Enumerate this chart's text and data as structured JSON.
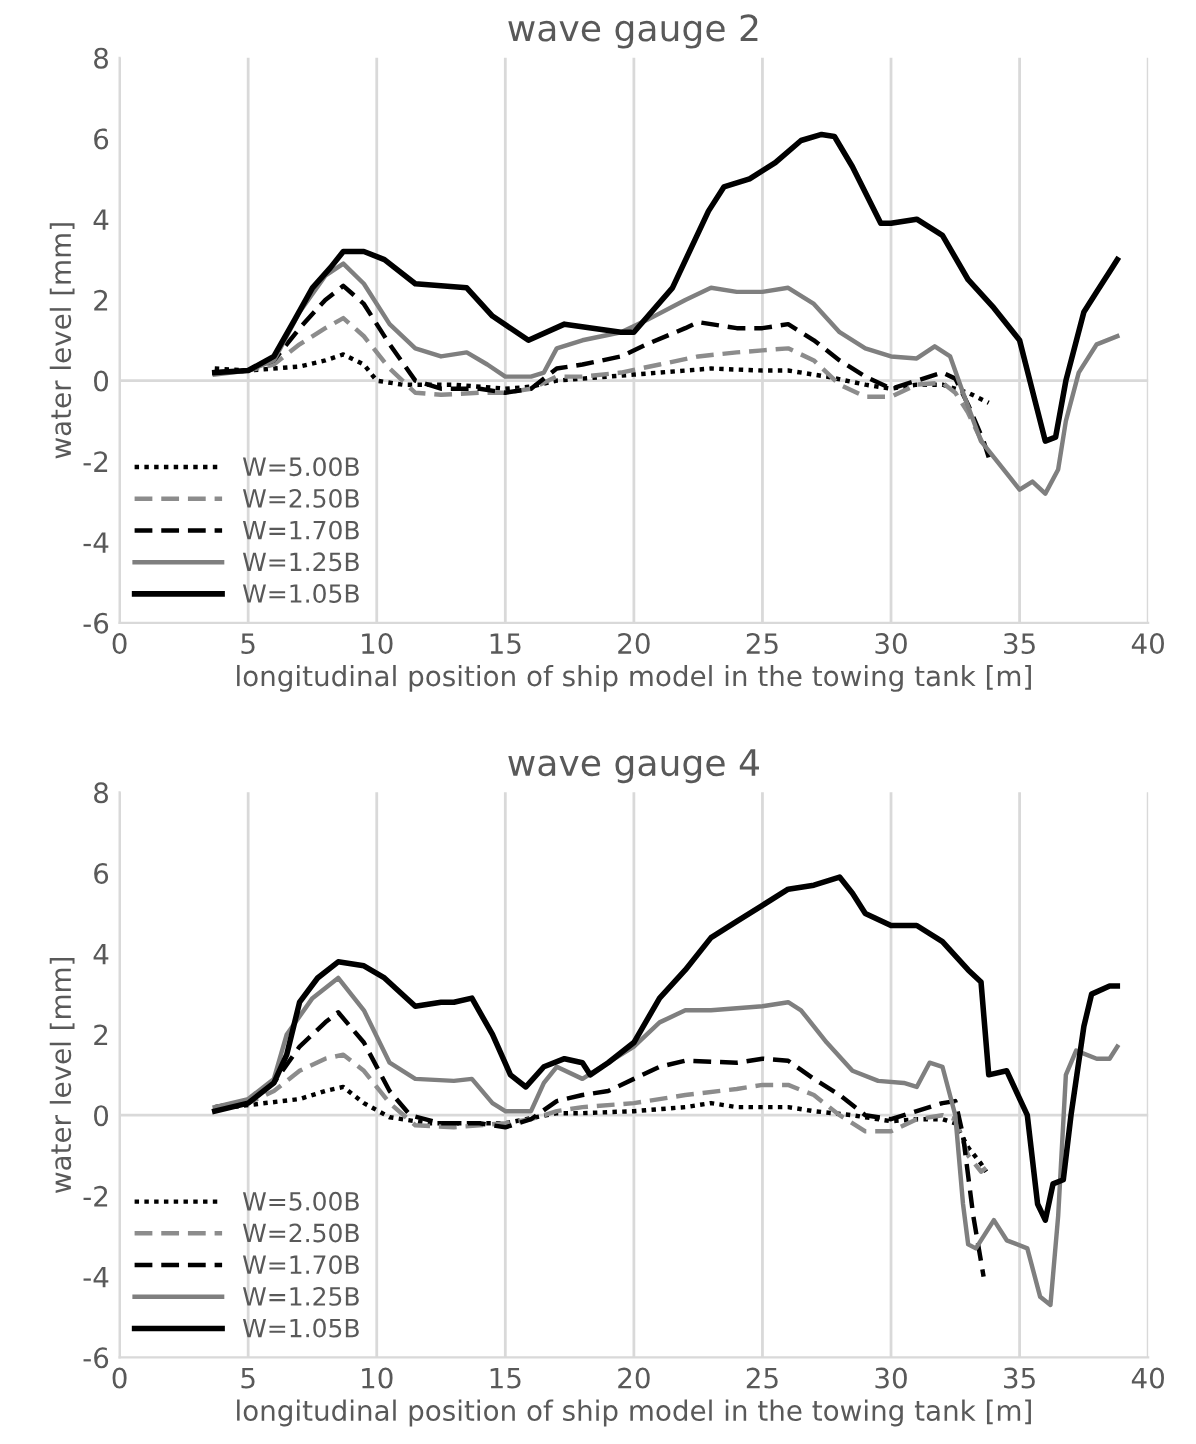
{
  "chart_data": [
    {
      "type": "line",
      "title": "wave gauge 2",
      "xlabel": "longitudinal position of ship model in the towing tank [m]",
      "ylabel": "water level [mm]",
      "xlim": [
        0,
        40
      ],
      "xticks": [
        0,
        5,
        10,
        15,
        20,
        25,
        30,
        35,
        40
      ],
      "ylim": [
        -6,
        8
      ],
      "yticks": [
        -6,
        -4,
        -2,
        0,
        2,
        4,
        6,
        8
      ],
      "grid": "x",
      "legend": "bottom left",
      "marker": "none",
      "ref_lines": [
        {
          "axis": "y",
          "value": 0,
          "color": "#d9d9d9"
        }
      ],
      "series": [
        {
          "name": "W=5.00B",
          "color": "#000000",
          "line_style": "dotted",
          "x": [
            3.7,
            5,
            7,
            8,
            8.7,
            9.5,
            10,
            11,
            13,
            15,
            16,
            17,
            18,
            20,
            22,
            23,
            25,
            26,
            27.5,
            29,
            30,
            31,
            32,
            33,
            33.8
          ],
          "values": [
            0.3,
            0.25,
            0.35,
            0.5,
            0.65,
            0.4,
            0,
            -0.1,
            -0.1,
            -0.2,
            -0.15,
            0,
            0.05,
            0.15,
            0.25,
            0.3,
            0.25,
            0.25,
            0.1,
            -0.1,
            -0.2,
            -0.1,
            -0.1,
            -0.3,
            -0.55
          ]
        },
        {
          "name": "W=2.50B",
          "color": "#8c8c8c",
          "line_style": "dashed",
          "x": [
            3.7,
            5,
            6,
            7,
            8,
            8.7,
            9.5,
            10.5,
            11.5,
            12.5,
            14,
            15,
            16,
            17,
            18,
            19.5,
            21,
            22.5,
            24,
            25,
            26,
            27,
            28,
            29,
            30,
            31,
            32,
            32.5,
            33,
            33.6
          ],
          "values": [
            0.2,
            0.25,
            0.4,
            0.9,
            1.3,
            1.55,
            1.1,
            0.3,
            -0.3,
            -0.35,
            -0.3,
            -0.3,
            -0.2,
            0.1,
            0.1,
            0.2,
            0.4,
            0.6,
            0.7,
            0.75,
            0.8,
            0.5,
            -0.1,
            -0.4,
            -0.4,
            -0.1,
            -0.05,
            -0.3,
            -0.8,
            -1.6
          ]
        },
        {
          "name": "W=1.70B",
          "color": "#000000",
          "line_style": "dashed",
          "x": [
            3.7,
            5,
            6,
            7,
            8,
            8.7,
            9.5,
            10.5,
            11.5,
            12.5,
            14,
            15,
            16,
            17,
            18,
            19.5,
            20.5,
            22,
            22.5,
            24,
            25,
            26,
            27,
            28,
            29,
            30,
            31,
            32,
            32.5,
            33,
            33.6,
            33.8
          ],
          "values": [
            0.2,
            0.25,
            0.5,
            1.3,
            2.0,
            2.35,
            1.9,
            0.9,
            0,
            -0.2,
            -0.2,
            -0.3,
            -0.2,
            0.3,
            0.4,
            0.6,
            0.9,
            1.3,
            1.45,
            1.3,
            1.3,
            1.4,
            1.0,
            0.5,
            0.1,
            -0.2,
            0,
            0.2,
            0.05,
            -0.6,
            -1.5,
            -1.9
          ]
        },
        {
          "name": "W=1.25B",
          "color": "#7f7f7f",
          "line_style": "solid",
          "x": [
            3.7,
            5,
            6,
            7,
            8,
            8.7,
            9.5,
            10.5,
            11.5,
            12.5,
            13.5,
            14.3,
            15,
            16,
            16.5,
            17,
            18,
            19.5,
            20.5,
            22,
            23,
            24,
            25,
            26,
            27,
            28,
            29,
            30,
            31,
            31.7,
            32.3,
            32.8,
            33.5,
            34.5,
            35,
            35.5,
            36,
            36.5,
            36.8,
            37.3,
            38,
            38.8
          ],
          "values": [
            0.15,
            0.25,
            0.5,
            1.7,
            2.6,
            2.9,
            2.4,
            1.4,
            0.8,
            0.6,
            0.7,
            0.4,
            0.1,
            0.1,
            0.2,
            0.8,
            1.0,
            1.2,
            1.5,
            2.0,
            2.3,
            2.2,
            2.2,
            2.3,
            1.9,
            1.2,
            0.8,
            0.6,
            0.55,
            0.85,
            0.6,
            -0.3,
            -1.5,
            -2.3,
            -2.7,
            -2.5,
            -2.8,
            -2.2,
            -1.0,
            0.2,
            0.9,
            1.1
          ]
        },
        {
          "name": "W=1.05B",
          "color": "#000000",
          "line_style": "solid",
          "x": [
            3.7,
            5,
            6,
            6.8,
            7.5,
            8.2,
            8.7,
            9.5,
            10.3,
            11.5,
            12.5,
            13.5,
            14.5,
            15.9,
            17.3,
            19.5,
            20,
            21.5,
            22.9,
            23.5,
            24.5,
            25.5,
            26.5,
            27.3,
            27.8,
            28.5,
            29.6,
            30,
            31,
            32,
            33,
            34,
            35,
            35.6,
            36,
            36.4,
            36.8,
            37.5,
            38,
            38.6,
            38.8
          ],
          "values": [
            0.2,
            0.25,
            0.6,
            1.5,
            2.3,
            2.8,
            3.2,
            3.2,
            3.0,
            2.4,
            2.35,
            2.3,
            1.6,
            1.0,
            1.4,
            1.2,
            1.2,
            2.3,
            4.2,
            4.8,
            5.0,
            5.4,
            5.95,
            6.1,
            6.05,
            5.3,
            3.9,
            3.9,
            4.0,
            3.6,
            2.5,
            1.8,
            1.0,
            -0.5,
            -1.5,
            -1.4,
            0,
            1.7,
            2.2,
            2.8,
            3.0
          ]
        }
      ]
    },
    {
      "type": "line",
      "title": "wave gauge 4",
      "xlabel": "longitudinal position of ship model in the towing tank [m]",
      "ylabel": "water level [mm]",
      "xlim": [
        0,
        40
      ],
      "xticks": [
        0,
        5,
        10,
        15,
        20,
        25,
        30,
        35,
        40
      ],
      "ylim": [
        -6,
        8
      ],
      "yticks": [
        -6,
        -4,
        -2,
        0,
        2,
        4,
        6,
        8
      ],
      "grid": "x",
      "legend": "bottom left",
      "marker": "none",
      "ref_lines": [
        {
          "axis": "y",
          "value": 0,
          "color": "#d9d9d9"
        }
      ],
      "series": [
        {
          "name": "W=5.00B",
          "color": "#000000",
          "line_style": "dotted",
          "x": [
            3.7,
            5,
            7,
            8,
            8.7,
            9.5,
            10.5,
            12,
            14,
            15,
            17,
            18,
            20,
            22,
            23,
            24,
            25,
            26,
            27,
            28.5,
            30,
            31,
            32,
            32.5,
            33,
            33.5,
            33.7
          ],
          "values": [
            0.15,
            0.25,
            0.4,
            0.6,
            0.7,
            0.3,
            -0.05,
            -0.2,
            -0.2,
            -0.2,
            0.05,
            0.05,
            0.1,
            0.2,
            0.3,
            0.2,
            0.2,
            0.2,
            0.1,
            0,
            -0.15,
            -0.1,
            -0.1,
            -0.2,
            -0.8,
            -1.2,
            -1.4
          ]
        },
        {
          "name": "W=2.50B",
          "color": "#8c8c8c",
          "line_style": "dashed",
          "x": [
            3.7,
            5,
            6,
            7,
            8,
            8.7,
            9.5,
            10.5,
            11.5,
            13,
            15,
            16,
            17,
            18,
            20,
            22,
            24,
            25,
            26,
            27,
            28,
            29,
            30,
            31,
            32,
            32.5,
            33,
            33.5,
            33.7
          ],
          "values": [
            0.2,
            0.3,
            0.6,
            1.1,
            1.4,
            1.5,
            1.1,
            0.3,
            -0.25,
            -0.3,
            -0.2,
            -0.1,
            0.1,
            0.2,
            0.3,
            0.5,
            0.65,
            0.75,
            0.75,
            0.5,
            0,
            -0.4,
            -0.4,
            -0.1,
            0,
            -0.1,
            -1.0,
            -1.4,
            -1.3
          ]
        },
        {
          "name": "W=1.70B",
          "color": "#000000",
          "line_style": "dashed",
          "x": [
            3.7,
            5,
            6,
            7,
            8,
            8.5,
            9.5,
            10.5,
            11.3,
            12.5,
            14,
            15,
            16,
            17,
            18,
            19,
            20,
            21,
            22,
            24,
            25,
            26,
            27,
            28,
            29,
            30,
            31,
            32,
            32.5,
            32.8,
            33.2,
            33.6
          ],
          "values": [
            0.2,
            0.35,
            0.8,
            1.7,
            2.3,
            2.55,
            1.8,
            0.6,
            0,
            -0.2,
            -0.2,
            -0.3,
            -0.1,
            0.35,
            0.5,
            0.6,
            0.9,
            1.2,
            1.35,
            1.3,
            1.4,
            1.35,
            0.9,
            0.5,
            0,
            -0.1,
            0.1,
            0.3,
            0.35,
            -0.5,
            -2.5,
            -4.0
          ]
        },
        {
          "name": "W=1.25B",
          "color": "#7f7f7f",
          "line_style": "solid",
          "x": [
            3.7,
            5,
            6,
            6.5,
            7.5,
            8.5,
            9.5,
            10.5,
            11.5,
            13,
            13.7,
            14.5,
            15,
            16,
            16.5,
            17,
            18,
            19,
            20,
            21,
            22,
            23,
            25,
            26,
            26.5,
            27.5,
            28.5,
            29.5,
            30.5,
            31,
            31.5,
            32,
            32.5,
            32.8,
            33,
            33.3,
            34,
            34.5,
            35.3,
            35.8,
            36.2,
            36.5,
            36.8,
            37.2,
            38,
            38.5,
            38.8
          ],
          "values": [
            0.2,
            0.4,
            0.9,
            2.0,
            2.9,
            3.4,
            2.6,
            1.3,
            0.9,
            0.85,
            0.9,
            0.3,
            0.1,
            0.1,
            0.8,
            1.2,
            0.9,
            1.3,
            1.7,
            2.3,
            2.6,
            2.6,
            2.7,
            2.8,
            2.6,
            1.8,
            1.1,
            0.85,
            0.8,
            0.7,
            1.3,
            1.2,
            0,
            -2.2,
            -3.2,
            -3.3,
            -2.6,
            -3.1,
            -3.3,
            -4.5,
            -4.7,
            -2.5,
            1.0,
            1.6,
            1.4,
            1.4,
            1.7
          ]
        },
        {
          "name": "W=1.05B",
          "color": "#000000",
          "line_style": "solid",
          "x": [
            3.7,
            5,
            6,
            6.5,
            7,
            7.7,
            8.5,
            9.5,
            10.3,
            11.5,
            12.5,
            13,
            13.7,
            14.5,
            15.2,
            15.8,
            16.5,
            17.3,
            18,
            18.3,
            19,
            20,
            21,
            22,
            23,
            24,
            25,
            26,
            27,
            27.5,
            28,
            28.5,
            29,
            30,
            31,
            32,
            33,
            33.5,
            33.8,
            34.5,
            35.3,
            35.7,
            36,
            36.3,
            36.7,
            37,
            37.5,
            37.8,
            38.5,
            38.8
          ],
          "values": [
            0.1,
            0.3,
            0.8,
            1.5,
            2.8,
            3.4,
            3.8,
            3.7,
            3.4,
            2.7,
            2.8,
            2.8,
            2.9,
            2.0,
            1.0,
            0.7,
            1.2,
            1.4,
            1.3,
            1.0,
            1.3,
            1.8,
            2.9,
            3.6,
            4.4,
            4.8,
            5.2,
            5.6,
            5.7,
            5.8,
            5.9,
            5.5,
            5.0,
            4.7,
            4.7,
            4.3,
            3.6,
            3.3,
            1.0,
            1.1,
            0,
            -2.2,
            -2.6,
            -1.7,
            -1.6,
            0,
            2.2,
            3.0,
            3.2,
            3.2
          ]
        }
      ]
    }
  ]
}
